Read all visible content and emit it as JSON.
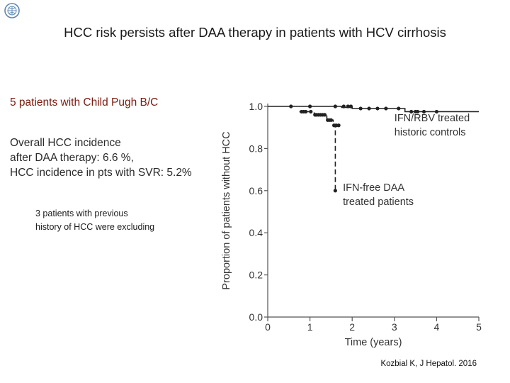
{
  "slide": {
    "title": "HCC risk persists after DAA therapy in patients with HCV cirrhosis",
    "point1": "5 patients with Child Pugh B/C",
    "point2_lines": [
      "Overall HCC incidence",
      "after DAA therapy: 6.6 %,",
      "HCC incidence in pts with SVR: 5.2%"
    ],
    "note_lines": [
      "3 patients with previous",
      "history of HCC were excluding"
    ],
    "citation": "Kozbial K, J Hepatol. 2016",
    "logo_icon": "globe-emblem-icon"
  },
  "chart_data": {
    "type": "line",
    "xlabel": "Time (years)",
    "ylabel": "Proportion of patients without HCC",
    "xlim": [
      0,
      5
    ],
    "ylim": [
      0,
      1.0
    ],
    "xticks": [
      0,
      1,
      2,
      3,
      4,
      5
    ],
    "yticks": [
      0,
      0.2,
      0.4,
      0.6,
      0.8,
      1.0
    ],
    "ytick_labels": [
      "0.0",
      "0.2",
      "0.4",
      "0.6",
      "0.8",
      "1.0"
    ],
    "grid": false,
    "series": [
      {
        "name": "IFN/RBV treated historic controls",
        "label_lines": [
          "IFN/RBV treated",
          "historic controls"
        ],
        "style": "solid",
        "color": "#222222",
        "steps": [
          [
            0,
            1.0
          ],
          [
            1.75,
            1.0
          ],
          [
            1.75,
            0.995
          ],
          [
            2.0,
            0.995
          ],
          [
            2.0,
            0.99
          ],
          [
            3.25,
            0.99
          ],
          [
            3.25,
            0.975
          ],
          [
            5.0,
            0.975
          ]
        ],
        "censored": [
          [
            0.55,
            1.0
          ],
          [
            1.0,
            1.0
          ],
          [
            1.6,
            1.0
          ],
          [
            1.8,
            1.0
          ],
          [
            1.9,
            1.0
          ],
          [
            1.97,
            1.0
          ],
          [
            2.2,
            0.99
          ],
          [
            2.4,
            0.99
          ],
          [
            2.6,
            0.99
          ],
          [
            2.8,
            0.99
          ],
          [
            3.1,
            0.99
          ],
          [
            3.4,
            0.975
          ],
          [
            3.5,
            0.975
          ],
          [
            3.55,
            0.975
          ],
          [
            3.7,
            0.975
          ],
          [
            4.0,
            0.975
          ]
        ]
      },
      {
        "name": "IFN-free DAA treated patients",
        "label_lines": [
          "IFN-free DAA",
          "treated patients"
        ],
        "style": "dashed",
        "color": "#222222",
        "steps": [
          [
            0.75,
            0.975
          ],
          [
            1.1,
            0.975
          ],
          [
            1.1,
            0.96
          ],
          [
            1.4,
            0.96
          ],
          [
            1.4,
            0.935
          ],
          [
            1.55,
            0.935
          ],
          [
            1.55,
            0.91
          ],
          [
            1.6,
            0.91
          ],
          [
            1.6,
            0.6
          ]
        ],
        "censored": [
          [
            0.8,
            0.975
          ],
          [
            0.85,
            0.975
          ],
          [
            0.9,
            0.975
          ],
          [
            1.02,
            0.975
          ],
          [
            1.12,
            0.96
          ],
          [
            1.15,
            0.96
          ],
          [
            1.2,
            0.96
          ],
          [
            1.25,
            0.96
          ],
          [
            1.3,
            0.96
          ],
          [
            1.35,
            0.96
          ],
          [
            1.42,
            0.935
          ],
          [
            1.46,
            0.935
          ],
          [
            1.5,
            0.935
          ],
          [
            1.57,
            0.91
          ],
          [
            1.62,
            0.91
          ],
          [
            1.68,
            0.91
          ],
          [
            1.6,
            0.6
          ]
        ]
      }
    ]
  }
}
